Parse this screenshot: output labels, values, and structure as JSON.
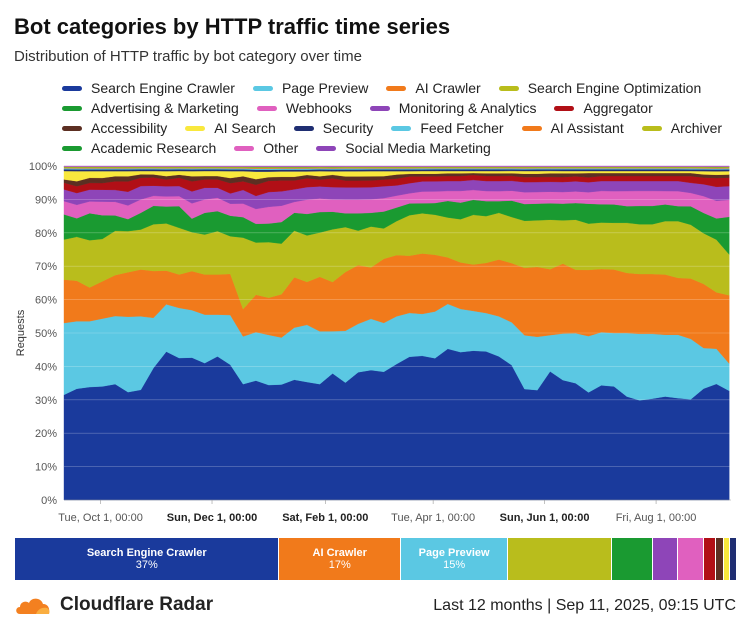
{
  "header": {
    "title": "Bot categories by HTTP traffic time series",
    "subtitle": "Distribution of HTTP traffic by bot category over time"
  },
  "footer": {
    "brand": "Cloudflare Radar",
    "period": "Last 12 months",
    "timestamp": "Sep 11, 2025, 09:15 UTC"
  },
  "summary_bar": [
    {
      "name": "Search Engine Crawler",
      "percent": "37%",
      "share": 37,
      "color": "#1a3a9c"
    },
    {
      "name": "AI Crawler",
      "percent": "17%",
      "share": 17,
      "color": "#f17a1b"
    },
    {
      "name": "Page Preview",
      "percent": "15%",
      "share": 15,
      "color": "#5bc8e3"
    },
    {
      "name": "",
      "percent": "",
      "share": 14.5,
      "color": "#b9bd1c"
    },
    {
      "name": "",
      "percent": "",
      "share": 5.7,
      "color": "#1a9a31"
    },
    {
      "name": "",
      "percent": "",
      "share": 3.6,
      "color": "#8e45b8"
    },
    {
      "name": "",
      "percent": "",
      "share": 3.6,
      "color": "#e060bf"
    },
    {
      "name": "",
      "percent": "",
      "share": 1.7,
      "color": "#b10f16"
    },
    {
      "name": "",
      "percent": "",
      "share": 1.1,
      "color": "#5c2f22"
    },
    {
      "name": "",
      "percent": "",
      "share": 0.9,
      "color": "#f9e83d"
    },
    {
      "name": "",
      "percent": "",
      "share": 0.9,
      "color": "#1f2e72"
    }
  ],
  "chart_data": {
    "type": "area",
    "stacked": true,
    "normalized": true,
    "title": "Bot categories by HTTP traffic time series",
    "subtitle": "Distribution of HTTP traffic by bot category over time",
    "ylabel": "Requests",
    "ylim": [
      0,
      100
    ],
    "yticks": [
      "0%",
      "10%",
      "20%",
      "30%",
      "40%",
      "50%",
      "60%",
      "70%",
      "80%",
      "90%",
      "100%"
    ],
    "x_range": [
      "2024-09-11",
      "2025-09-11"
    ],
    "xticks": [
      {
        "label": "Tue, Oct 1, 00:00",
        "date": "2024-10-01",
        "bold": false
      },
      {
        "label": "Sun, Dec 1, 00:00",
        "date": "2024-12-01",
        "bold": true
      },
      {
        "label": "Sat, Feb 1, 00:00",
        "date": "2025-02-01",
        "bold": true
      },
      {
        "label": "Tue, Apr 1, 00:00",
        "date": "2025-04-01",
        "bold": false
      },
      {
        "label": "Sun, Jun 1, 00:00",
        "date": "2025-06-01",
        "bold": true
      },
      {
        "label": "Fri, Aug 1, 00:00",
        "date": "2025-08-01",
        "bold": false
      }
    ],
    "legend_position": "top",
    "grid": true,
    "x": [
      "2024-09-11",
      "2024-09-18",
      "2024-09-25",
      "2024-10-02",
      "2024-10-09",
      "2024-10-16",
      "2024-10-23",
      "2024-10-30",
      "2024-11-06",
      "2024-11-13",
      "2024-11-20",
      "2024-11-27",
      "2024-12-04",
      "2024-12-11",
      "2024-12-18",
      "2024-12-25",
      "2025-01-01",
      "2025-01-08",
      "2025-01-15",
      "2025-01-22",
      "2025-01-29",
      "2025-02-05",
      "2025-02-12",
      "2025-02-19",
      "2025-02-26",
      "2025-03-05",
      "2025-03-12",
      "2025-03-19",
      "2025-03-26",
      "2025-04-02",
      "2025-04-09",
      "2025-04-16",
      "2025-04-23",
      "2025-04-30",
      "2025-05-07",
      "2025-05-14",
      "2025-05-21",
      "2025-05-28",
      "2025-06-04",
      "2025-06-11",
      "2025-06-18",
      "2025-06-25",
      "2025-07-02",
      "2025-07-09",
      "2025-07-16",
      "2025-07-23",
      "2025-07-30",
      "2025-08-06",
      "2025-08-13",
      "2025-08-20",
      "2025-08-27",
      "2025-09-03",
      "2025-09-10"
    ],
    "series": [
      {
        "name": "Search Engine Crawler",
        "color": "#1a3a9c",
        "values": [
          31.5,
          33,
          33.5,
          33.5,
          34,
          31.5,
          33,
          39.5,
          44,
          42.5,
          42,
          41,
          43,
          39.5,
          34,
          32,
          31,
          32,
          33.5,
          33,
          34,
          36,
          34,
          37,
          38,
          38,
          40,
          42.5,
          43,
          42.5,
          45.5,
          44.5,
          45,
          44.5,
          43,
          41,
          33,
          33,
          39,
          36,
          35,
          32.5,
          34.5,
          34,
          31,
          30,
          30.5,
          31,
          30.5,
          30,
          33,
          33,
          32
        ]
      },
      {
        "name": "Page Preview",
        "color": "#5bc8e3",
        "values": [
          21.5,
          20,
          19.5,
          20,
          20,
          22,
          22,
          15,
          14,
          15,
          14,
          14.5,
          12.5,
          14.5,
          14,
          13,
          13.5,
          13,
          14.5,
          16,
          15.5,
          12,
          15,
          14,
          15,
          14.5,
          14,
          13,
          12.5,
          14,
          13.5,
          13,
          12,
          11.5,
          12,
          13,
          16,
          16,
          11,
          14,
          15,
          17,
          16,
          16,
          19,
          20,
          19.5,
          18.5,
          19,
          18,
          12,
          10,
          8
        ]
      },
      {
        "name": "AI Crawler",
        "color": "#f17a1b",
        "values": [
          13,
          12,
          10,
          11,
          12,
          13,
          14,
          14,
          10,
          10,
          11.5,
          12,
          12,
          12,
          8,
          10,
          10,
          12,
          14,
          12,
          16,
          14,
          17,
          17,
          15,
          19,
          18,
          17,
          18,
          17,
          14,
          14,
          14,
          15,
          17,
          18,
          20,
          21,
          20,
          21,
          19,
          20,
          19,
          19,
          18,
          18,
          18,
          18,
          17,
          18,
          19,
          16,
          20
        ]
      },
      {
        "name": "Search Engine Optimization",
        "color": "#b9bd1c",
        "values": [
          12,
          13,
          14,
          12.5,
          13,
          12,
          12,
          14,
          14,
          14,
          11.5,
          12,
          13,
          11,
          21,
          14,
          15,
          14,
          13,
          13,
          13,
          15,
          13,
          10,
          12,
          9,
          10,
          12,
          12,
          12,
          12,
          13,
          15,
          14,
          14,
          14,
          14,
          14,
          15,
          13,
          15,
          14,
          14,
          14,
          15,
          15,
          15,
          16,
          17,
          16,
          15,
          15,
          12
        ]
      },
      {
        "name": "Advertising & Marketing",
        "color": "#1a9a31",
        "values": [
          7.5,
          5.5,
          8,
          7,
          4.5,
          3.5,
          5,
          5.5,
          5,
          6.5,
          4,
          6.5,
          6,
          6,
          6,
          5,
          5,
          6,
          5,
          6,
          6,
          5,
          4,
          5,
          4,
          5,
          4,
          3.5,
          3,
          3.5,
          5,
          5,
          4.5,
          4.5,
          3.5,
          5,
          5,
          5,
          5,
          5,
          5,
          6,
          5.5,
          5.5,
          5,
          5.5,
          5.5,
          5,
          4.5,
          5.5,
          6,
          6,
          11
        ]
      },
      {
        "name": "Webhooks",
        "color": "#e060bf",
        "values": [
          4,
          4,
          3.5,
          4,
          4,
          4,
          4,
          3,
          3,
          3,
          4.5,
          4,
          4,
          3.5,
          4,
          4,
          4.5,
          4.5,
          3,
          4,
          4,
          3.5,
          4,
          4,
          4,
          4,
          3.5,
          3,
          3.5,
          3.5,
          3,
          3.5,
          3,
          3,
          3,
          3,
          3.5,
          3.5,
          3.5,
          3.5,
          3.5,
          3.5,
          4,
          4,
          4.5,
          4.5,
          4.5,
          4,
          4.5,
          4,
          5,
          5,
          5
        ]
      },
      {
        "name": "Monitoring & Analytics",
        "color": "#8e45b8",
        "values": [
          3.5,
          3.5,
          3.5,
          3.5,
          3.5,
          4,
          4,
          3,
          3,
          3,
          3.5,
          3.5,
          3,
          3,
          4,
          3.5,
          4,
          4,
          3.5,
          3.5,
          3.5,
          3.5,
          3.5,
          3.5,
          3.5,
          3.5,
          3,
          3,
          3,
          3,
          3,
          3,
          3,
          3,
          3,
          3,
          3,
          3,
          3,
          3,
          3,
          3,
          3,
          3,
          3,
          3,
          3,
          3,
          3,
          3,
          3.5,
          4,
          4
        ]
      },
      {
        "name": "Aggregator",
        "color": "#b10f16",
        "values": [
          2,
          2,
          2,
          2,
          2.5,
          3,
          2.5,
          2.5,
          2,
          2.5,
          3,
          2.5,
          2.5,
          3,
          2.5,
          3,
          3,
          3,
          2.5,
          2.5,
          2,
          2.5,
          2,
          2,
          2,
          2,
          2,
          2,
          1.5,
          1.5,
          1.5,
          1.5,
          1.5,
          1.5,
          1.5,
          1.5,
          1.5,
          1.5,
          1.5,
          1.5,
          1.5,
          1.5,
          1.5,
          1.5,
          1.5,
          1.5,
          1.5,
          1.5,
          1.5,
          2,
          2,
          2.5,
          2.5
        ]
      },
      {
        "name": "Accessibility",
        "color": "#5c2f22",
        "values": [
          1,
          1.5,
          1.5,
          1.5,
          1.5,
          1.5,
          1,
          0.9,
          1,
          0.9,
          1.5,
          1,
          1,
          1.5,
          1.5,
          1.5,
          1,
          1,
          1,
          0.9,
          1,
          1,
          1.2,
          1.2,
          1.2,
          1,
          1.2,
          0.8,
          0.8,
          0.8,
          0.8,
          0.8,
          0.6,
          0.8,
          0.8,
          0.8,
          1,
          1,
          1.1,
          1.1,
          0.9,
          1.3,
          0.9,
          0.9,
          0.9,
          0.9,
          0.9,
          0.9,
          0.9,
          0.9,
          0.9,
          0.9,
          0.9
        ]
      },
      {
        "name": "AI Search",
        "color": "#f9e83d",
        "values": [
          2.5,
          3,
          2,
          2,
          1.5,
          1.5,
          1,
          1,
          1.5,
          1.1,
          1.5,
          1.5,
          1.5,
          2,
          1.5,
          2,
          1.5,
          1.5,
          1.5,
          1,
          1.5,
          1,
          1.5,
          1.5,
          1.5,
          1.5,
          1,
          0.8,
          0.8,
          0.8,
          0.7,
          0.7,
          0.6,
          0.7,
          0.7,
          0.7,
          0.8,
          0.8,
          0.7,
          0.7,
          0.7,
          0.6,
          0.6,
          0.6,
          0.6,
          0.6,
          0.6,
          0.6,
          0.6,
          0.6,
          1,
          1,
          1
        ]
      },
      {
        "name": "Security",
        "color": "#1f2e72",
        "values": [
          0.5,
          0.5,
          0.5,
          0.5,
          0.5,
          0.5,
          0.5,
          0.5,
          0.5,
          0.5,
          0.5,
          0.5,
          0.5,
          0.5,
          0.5,
          0.5,
          0.5,
          0.5,
          0.5,
          0.5,
          0.5,
          0.5,
          0.5,
          0.5,
          0.5,
          0.5,
          0.5,
          0.5,
          0.5,
          0.5,
          0.5,
          0.5,
          0.5,
          0.5,
          0.5,
          0.5,
          0.5,
          0.5,
          0.5,
          0.5,
          0.5,
          0.5,
          0.5,
          0.5,
          0.5,
          0.5,
          0.5,
          0.5,
          0.5,
          0.5,
          0.5,
          0.5,
          0.5
        ]
      },
      {
        "name": "Feed Fetcher",
        "color": "#5bc8e3",
        "values": [
          0.3,
          0.3,
          0.3,
          0.3,
          0.3,
          0.3,
          0.3,
          0.3,
          0.3,
          0.3,
          0.3,
          0.3,
          0.3,
          0.3,
          0.3,
          0.3,
          0.3,
          0.3,
          0.3,
          0.3,
          0.3,
          0.3,
          0.3,
          0.3,
          0.3,
          0.3,
          0.3,
          0.3,
          0.3,
          0.3,
          0.3,
          0.3,
          0.3,
          0.3,
          0.3,
          0.3,
          0.3,
          0.3,
          0.3,
          0.3,
          0.3,
          0.3,
          0.3,
          0.3,
          0.3,
          0.3,
          0.3,
          0.3,
          0.3,
          0.3,
          0.3,
          0.3,
          0.3
        ]
      },
      {
        "name": "AI Assistant",
        "color": "#f17a1b",
        "values": [
          0.2,
          0.2,
          0.2,
          0.2,
          0.2,
          0.2,
          0.2,
          0.2,
          0.2,
          0.2,
          0.2,
          0.2,
          0.2,
          0.2,
          0.2,
          0.2,
          0.2,
          0.2,
          0.2,
          0.2,
          0.2,
          0.2,
          0.2,
          0.2,
          0.2,
          0.2,
          0.2,
          0.2,
          0.2,
          0.2,
          0.2,
          0.2,
          0.2,
          0.2,
          0.2,
          0.2,
          0.2,
          0.2,
          0.2,
          0.2,
          0.2,
          0.2,
          0.2,
          0.2,
          0.2,
          0.2,
          0.2,
          0.2,
          0.2,
          0.2,
          0.2,
          0.2,
          0.2
        ]
      },
      {
        "name": "Archiver",
        "color": "#b9bd1c",
        "values": [
          0.2,
          0.2,
          0.2,
          0.2,
          0.2,
          0.2,
          0.2,
          0.2,
          0.2,
          0.2,
          0.2,
          0.2,
          0.2,
          0.2,
          0.2,
          0.2,
          0.2,
          0.2,
          0.2,
          0.2,
          0.2,
          0.2,
          0.2,
          0.2,
          0.2,
          0.2,
          0.2,
          0.2,
          0.2,
          0.2,
          0.2,
          0.2,
          0.2,
          0.2,
          0.2,
          0.2,
          0.2,
          0.2,
          0.2,
          0.2,
          0.2,
          0.2,
          0.2,
          0.2,
          0.2,
          0.2,
          0.2,
          0.2,
          0.2,
          0.2,
          0.2,
          0.2,
          0.2
        ]
      },
      {
        "name": "Academic Research",
        "color": "#1a9a31",
        "values": [
          0.1,
          0.1,
          0.1,
          0.1,
          0.1,
          0.1,
          0.1,
          0.1,
          0.1,
          0.1,
          0.1,
          0.1,
          0.1,
          0.1,
          0.1,
          0.1,
          0.1,
          0.1,
          0.1,
          0.1,
          0.1,
          0.1,
          0.1,
          0.1,
          0.1,
          0.1,
          0.1,
          0.1,
          0.1,
          0.1,
          0.1,
          0.1,
          0.1,
          0.1,
          0.1,
          0.1,
          0.1,
          0.1,
          0.1,
          0.1,
          0.1,
          0.1,
          0.1,
          0.1,
          0.1,
          0.1,
          0.1,
          0.1,
          0.1,
          0.1,
          0.1,
          0.1,
          0.1
        ]
      },
      {
        "name": "Other",
        "color": "#e060bf",
        "values": [
          0.1,
          0.1,
          0.1,
          0.1,
          0.1,
          0.1,
          0.1,
          0.1,
          0.1,
          0.1,
          0.1,
          0.1,
          0.1,
          0.1,
          0.1,
          0.1,
          0.1,
          0.1,
          0.1,
          0.1,
          0.1,
          0.1,
          0.1,
          0.1,
          0.1,
          0.1,
          0.1,
          0.1,
          0.1,
          0.1,
          0.1,
          0.1,
          0.1,
          0.1,
          0.1,
          0.1,
          0.1,
          0.1,
          0.1,
          0.1,
          0.1,
          0.1,
          0.1,
          0.1,
          0.1,
          0.1,
          0.1,
          0.1,
          0.1,
          0.1,
          0.1,
          0.1,
          0.1
        ]
      },
      {
        "name": "Social Media Marketing",
        "color": "#8e45b8",
        "values": [
          0.1,
          0.1,
          0.1,
          0.1,
          0.1,
          0.1,
          0.1,
          0.1,
          0.1,
          0.1,
          0.1,
          0.1,
          0.1,
          0.1,
          0.1,
          0.1,
          0.1,
          0.1,
          0.1,
          0.1,
          0.1,
          0.1,
          0.1,
          0.1,
          0.1,
          0.1,
          0.1,
          0.1,
          0.1,
          0.1,
          0.1,
          0.1,
          0.1,
          0.1,
          0.1,
          0.1,
          0.1,
          0.1,
          0.1,
          0.1,
          0.1,
          0.1,
          0.1,
          0.1,
          0.1,
          0.1,
          0.1,
          0.1,
          0.1,
          0.1,
          0.1,
          0.1,
          0.1
        ]
      }
    ]
  }
}
